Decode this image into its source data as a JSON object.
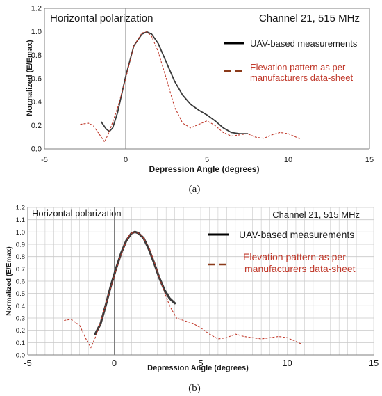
{
  "colors": {
    "measured": "#3a3a3a",
    "pattern": "#c0392b",
    "legend_pattern": "#8b3a1a",
    "grid": "#c8c8c8",
    "axis": "#7f7f7f",
    "text": "#1a1a1a"
  },
  "chart_data": [
    {
      "type": "line",
      "panel_caption": "(a)",
      "title": "Horizontal polarization",
      "subtitle": "Channel 21, 515 MHz",
      "xlabel": "Depression Angle (degrees)",
      "ylabel": "Normalized (E/Emax)",
      "xlim": [
        -5,
        15
      ],
      "ylim": [
        0,
        1.2
      ],
      "x_ticks": [
        -5,
        0,
        5,
        10,
        15
      ],
      "y_ticks": [
        0.0,
        0.2,
        0.4,
        0.6,
        0.8,
        1.0,
        1.2
      ],
      "x_tick_labels": [
        "-5",
        "0",
        "5",
        "10",
        "15"
      ],
      "y_tick_labels": [
        "0.0",
        "0.2",
        "0.4",
        "0.6",
        "0.8",
        "1.0",
        "1.2"
      ],
      "grid": false,
      "legend_position": "right",
      "series": [
        {
          "name": "UAV-based measurements",
          "style": "solid",
          "x": [
            -1.5,
            -1.2,
            -1.0,
            -0.8,
            -0.5,
            0.0,
            0.5,
            1.0,
            1.3,
            1.6,
            2.0,
            2.5,
            3.0,
            3.5,
            4.0,
            4.5,
            5.0,
            5.5,
            6.0,
            6.5,
            7.0,
            7.5
          ],
          "y": [
            0.23,
            0.17,
            0.15,
            0.18,
            0.31,
            0.62,
            0.88,
            0.98,
            1.0,
            0.98,
            0.9,
            0.74,
            0.58,
            0.46,
            0.38,
            0.33,
            0.29,
            0.24,
            0.18,
            0.14,
            0.13,
            0.13
          ]
        },
        {
          "name": "Elevation pattern as per manufacturers data-sheet",
          "style": "dashed",
          "x": [
            -2.8,
            -2.3,
            -2.0,
            -1.6,
            -1.3,
            -1.0,
            -0.5,
            0.0,
            0.5,
            1.0,
            1.3,
            1.6,
            2.0,
            2.5,
            3.0,
            3.5,
            4.0,
            4.5,
            5.0,
            5.5,
            6.0,
            6.5,
            7.0,
            7.5,
            8.0,
            8.5,
            9.0,
            9.5,
            10.0,
            10.5,
            10.8
          ],
          "y": [
            0.21,
            0.22,
            0.2,
            0.12,
            0.06,
            0.15,
            0.35,
            0.6,
            0.88,
            0.99,
            1.0,
            0.96,
            0.83,
            0.6,
            0.36,
            0.22,
            0.18,
            0.21,
            0.24,
            0.2,
            0.14,
            0.11,
            0.12,
            0.13,
            0.1,
            0.09,
            0.12,
            0.14,
            0.13,
            0.1,
            0.08
          ]
        }
      ]
    },
    {
      "type": "line",
      "panel_caption": "(b)",
      "title": "Horizontal polarization",
      "subtitle": "Channel 21, 515 MHz",
      "xlabel": "Depression Angle (degrees)",
      "ylabel": "Normalized (E/Emax)",
      "xlim": [
        -5,
        15
      ],
      "ylim": [
        0,
        1.2
      ],
      "x_ticks": [
        -5,
        0,
        5,
        10,
        15
      ],
      "y_ticks": [
        0.0,
        0.1,
        0.2,
        0.3,
        0.4,
        0.5,
        0.6,
        0.7,
        0.8,
        0.9,
        1.0,
        1.1,
        1.2
      ],
      "x_tick_labels": [
        "-5",
        "0",
        "5",
        "10",
        "15"
      ],
      "y_tick_labels": [
        "0.0",
        "0.1",
        "0.2",
        "0.3",
        "0.4",
        "0.5",
        "0.6",
        "0.7",
        "0.8",
        "0.9",
        "1.0",
        "1.1",
        "1.2"
      ],
      "grid": true,
      "legend_position": "right",
      "series": [
        {
          "name": "UAV-based measurements",
          "style": "solid",
          "x": [
            -1.1,
            -0.8,
            -0.5,
            -0.2,
            0.1,
            0.4,
            0.7,
            1.0,
            1.2,
            1.4,
            1.7,
            2.0,
            2.3,
            2.6,
            2.9,
            3.2,
            3.5
          ],
          "y": [
            0.17,
            0.25,
            0.4,
            0.56,
            0.7,
            0.83,
            0.93,
            0.99,
            1.0,
            0.99,
            0.95,
            0.86,
            0.75,
            0.63,
            0.53,
            0.46,
            0.42
          ]
        },
        {
          "name": "Elevation pattern as per manufacturers data-sheet",
          "style": "dashed",
          "x": [
            -2.9,
            -2.5,
            -2.0,
            -1.6,
            -1.35,
            -1.1,
            -0.8,
            -0.4,
            0.0,
            0.4,
            0.8,
            1.0,
            1.3,
            1.6,
            2.0,
            2.4,
            2.8,
            3.2,
            3.6,
            4.0,
            4.5,
            5.0,
            5.5,
            6.0,
            6.5,
            7.0,
            7.5,
            8.0,
            8.5,
            9.0,
            9.5,
            10.0,
            10.5,
            10.8
          ],
          "y": [
            0.28,
            0.29,
            0.24,
            0.12,
            0.06,
            0.14,
            0.26,
            0.45,
            0.64,
            0.82,
            0.96,
            0.99,
            1.0,
            0.97,
            0.88,
            0.72,
            0.55,
            0.4,
            0.3,
            0.28,
            0.26,
            0.22,
            0.17,
            0.13,
            0.14,
            0.17,
            0.15,
            0.14,
            0.13,
            0.14,
            0.15,
            0.14,
            0.11,
            0.09
          ]
        }
      ]
    }
  ]
}
